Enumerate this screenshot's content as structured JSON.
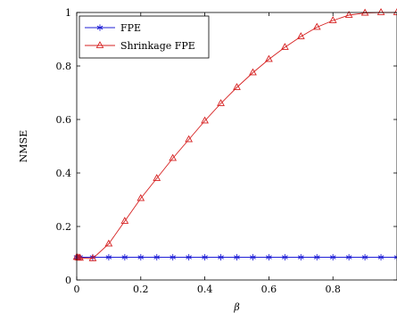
{
  "chart_data": {
    "type": "line",
    "title": "",
    "xlabel": "β",
    "ylabel": "NMSE",
    "xlim": [
      0,
      1
    ],
    "ylim": [
      0,
      1
    ],
    "x_ticks": [
      "0",
      "0.2",
      "0.4",
      "0.6",
      "0.8"
    ],
    "y_ticks": [
      "0",
      "0.2",
      "0.4",
      "0.6",
      "0.8",
      "1"
    ],
    "grid": false,
    "legend_position": "top-left",
    "x": [
      0,
      0.005,
      0.01,
      0.05,
      0.1,
      0.15,
      0.2,
      0.25,
      0.3,
      0.35,
      0.4,
      0.45,
      0.5,
      0.55,
      0.6,
      0.65,
      0.7,
      0.75,
      0.8,
      0.85,
      0.9,
      0.95,
      1.0
    ],
    "series": [
      {
        "name": "FPE",
        "color": "#1f1fd6",
        "marker": "star",
        "values": [
          0.085,
          0.085,
          0.085,
          0.085,
          0.085,
          0.085,
          0.085,
          0.085,
          0.085,
          0.085,
          0.085,
          0.085,
          0.085,
          0.085,
          0.085,
          0.085,
          0.085,
          0.085,
          0.085,
          0.085,
          0.085,
          0.085,
          0.085
        ]
      },
      {
        "name": "Shrinkage FPE",
        "color": "#d62020",
        "marker": "triangle",
        "values": [
          0.085,
          0.083,
          0.082,
          0.08,
          0.135,
          0.22,
          0.305,
          0.38,
          0.455,
          0.525,
          0.595,
          0.66,
          0.72,
          0.775,
          0.825,
          0.87,
          0.91,
          0.945,
          0.97,
          0.99,
          0.998,
          1.0,
          1.0
        ]
      }
    ]
  }
}
